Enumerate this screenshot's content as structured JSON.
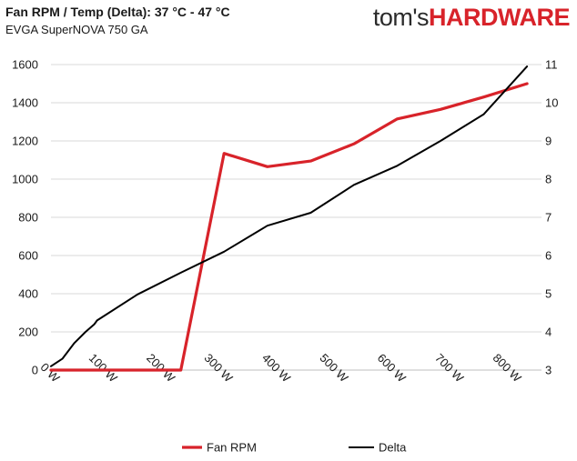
{
  "header": {
    "title": "Fan RPM / Temp (Delta): 37 °C - 47 °C",
    "subtitle": "EVGA SuperNOVA 750 GA",
    "brand_part1": "tom's",
    "brand_part2": "HARDWARE"
  },
  "chart_data": {
    "type": "line",
    "title": "Fan RPM / Temp (Delta): 37 °C - 47 °C",
    "subtitle": "EVGA SuperNOVA 750 GA",
    "x_tick_labels": [
      "0 W",
      "100 W",
      "200 W",
      "300 W",
      "400 W",
      "500 W",
      "600 W",
      "700 W",
      "800 W"
    ],
    "x_ticks": [
      0,
      100,
      200,
      300,
      400,
      500,
      600,
      700,
      800
    ],
    "xlim": [
      0,
      850
    ],
    "y_left_ticks": [
      "0",
      "200",
      "400",
      "600",
      "800",
      "1000",
      "1200",
      "1400",
      "1600"
    ],
    "y_left_lim": [
      0,
      1600
    ],
    "y_right_ticks": [
      "3",
      "4",
      "5",
      "6",
      "7",
      "8",
      "9",
      "10",
      "11"
    ],
    "y_right_lim": [
      3,
      11
    ],
    "grid": "horizontal",
    "legend_position": "bottom",
    "series": [
      {
        "name": "Fan RPM",
        "axis": "left",
        "color": "#d8232a",
        "x": [
          0,
          40,
          80,
          150,
          225,
          300,
          375,
          450,
          525,
          600,
          675,
          750,
          825
        ],
        "values": [
          0,
          0,
          0,
          0,
          0,
          1135,
          1065,
          1095,
          1185,
          1315,
          1365,
          1430,
          1500
        ]
      },
      {
        "name": "Delta",
        "axis": "right",
        "color": "#000000",
        "x": [
          0,
          20,
          40,
          60,
          75,
          80,
          150,
          225,
          300,
          375,
          450,
          525,
          600,
          675,
          750,
          825
        ],
        "values": [
          3.1,
          3.3,
          3.7,
          4.0,
          4.2,
          4.3,
          4.98,
          5.55,
          6.1,
          6.78,
          7.12,
          7.85,
          8.35,
          9.0,
          9.7,
          10.95
        ]
      }
    ]
  }
}
